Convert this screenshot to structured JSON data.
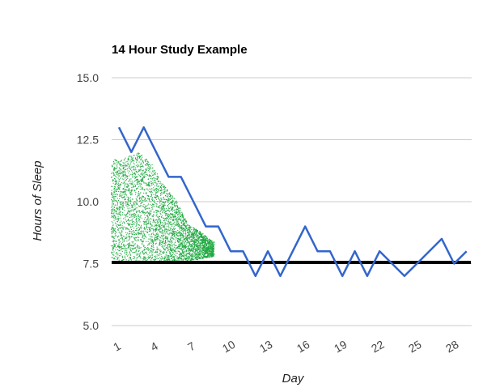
{
  "chart_data": {
    "type": "line",
    "title": "14 Hour Study Example",
    "xlabel": "Day",
    "ylabel": "Hours of Sleep",
    "xlim": [
      1,
      30
    ],
    "ylim": [
      5.0,
      15.0
    ],
    "yticks": [
      "5.0",
      "7.5",
      "10.0",
      "12.5",
      "15.0"
    ],
    "xticks": [
      "1",
      "4",
      "7",
      "10",
      "13",
      "16",
      "19",
      "22",
      "25",
      "28"
    ],
    "grid": true,
    "legend": "none",
    "colors": {
      "sleep_line": "#3366cc",
      "reference_line": "#000000",
      "scatter": "#22aa44",
      "grid": "#cccccc"
    },
    "series": [
      {
        "type": "line",
        "x": [
          1,
          2,
          3,
          4,
          5,
          6,
          7,
          8,
          9,
          10,
          11,
          12,
          13,
          14,
          15,
          16,
          17,
          18,
          19,
          20,
          21,
          22,
          23,
          24,
          25,
          26,
          27,
          28,
          29,
          30
        ],
        "values": [
          13.0,
          12.0,
          13.0,
          12.0,
          11.0,
          11.0,
          10.0,
          9.0,
          9.0,
          8.0,
          8.0,
          7.0,
          8.0,
          7.0,
          8.0,
          9.0,
          8.0,
          8.0,
          7.0,
          8.0,
          7.0,
          8.0,
          7.5,
          7.0,
          7.5,
          8.0,
          8.5,
          7.5,
          8.0,
          null
        ]
      },
      {
        "type": "reference",
        "x": [
          1,
          30
        ],
        "values": [
          7.55,
          7.55
        ]
      }
    ],
    "scatter_region": {
      "description_points": [
        {
          "x": 1,
          "ymin": 7.7,
          "ymax": 11.7
        },
        {
          "x": 2,
          "ymin": 7.6,
          "ymax": 11.8
        },
        {
          "x": 3,
          "ymin": 7.6,
          "ymax": 12.0
        },
        {
          "x": 4,
          "ymin": 7.6,
          "ymax": 11.6
        },
        {
          "x": 5,
          "ymin": 7.6,
          "ymax": 10.7
        },
        {
          "x": 6,
          "ymin": 7.6,
          "ymax": 10.1
        },
        {
          "x": 7,
          "ymin": 7.6,
          "ymax": 9.1
        },
        {
          "x": 8,
          "ymin": 7.7,
          "ymax": 8.8
        },
        {
          "x": 9,
          "ymin": 7.8,
          "ymax": 8.4
        }
      ]
    }
  }
}
